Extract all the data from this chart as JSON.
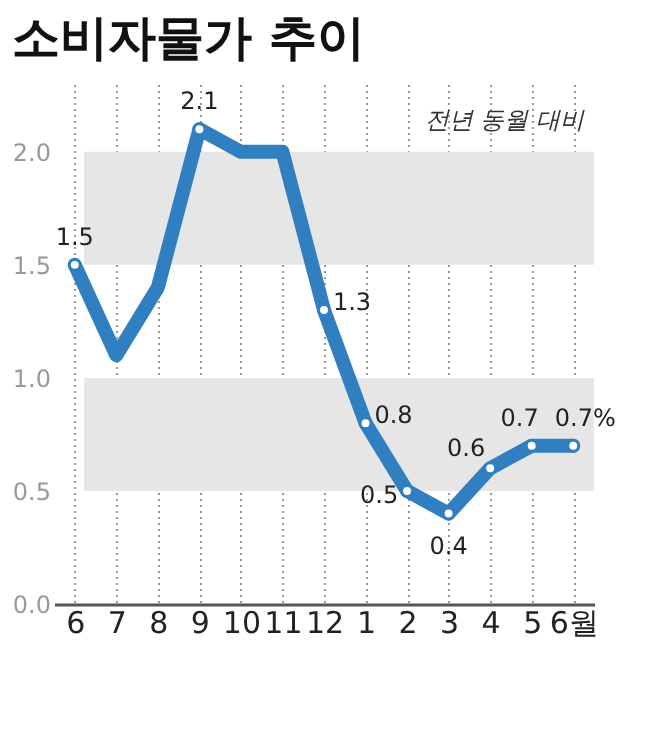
{
  "chart_data": {
    "type": "line",
    "title": "소비자물가 추이",
    "categories": [
      "6",
      "7",
      "8",
      "9",
      "10",
      "11",
      "12",
      "1",
      "2",
      "3",
      "4",
      "5",
      "6월"
    ],
    "series": [
      {
        "color": "#2f7fc1",
        "values": [
          1.5,
          1.1,
          1.4,
          2.1,
          2.0,
          2.0,
          1.3,
          0.8,
          0.5,
          0.4,
          0.6,
          0.7,
          0.7
        ],
        "value_labels": [
          "1.5",
          null,
          null,
          "2.1",
          null,
          null,
          "1.3",
          "0.8",
          "0.5",
          "0.4",
          "0.6",
          "0.7",
          "0.7%"
        ]
      }
    ],
    "ylim": [
      0,
      2.3
    ],
    "yticks": [
      {
        "value": 0,
        "label": "0.0"
      },
      {
        "value": 0.5,
        "label": "0.5"
      },
      {
        "value": 1,
        "label": "1.0"
      },
      {
        "value": 1.5,
        "label": "1.5"
      },
      {
        "value": 2,
        "label": "2.0"
      }
    ],
    "bands": [
      {
        "axis": "y",
        "from": 1.5,
        "to": 2.0,
        "color": "#e6e6e6"
      },
      {
        "axis": "y",
        "from": 0.5,
        "to": 1.0,
        "color": "#e6e6e6"
      }
    ],
    "annotations": [
      "전년 동월 대비"
    ],
    "grid": "x",
    "marker": "circle",
    "line_style": "solid"
  }
}
